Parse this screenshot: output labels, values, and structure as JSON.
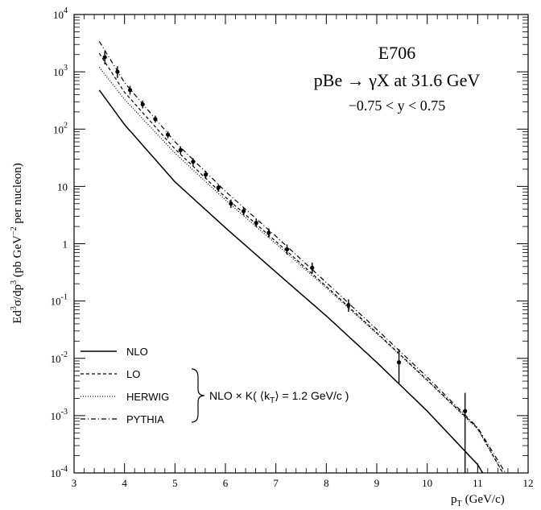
{
  "chart_data": {
    "type": "scatter",
    "title": "E706",
    "subtitle": "pBe → γX at 31.6 GeV",
    "cut": "−0.75 < y < 0.75",
    "xlabel": "p_T (GeV/c)",
    "xlabel_main": "p",
    "xlabel_sub": "T",
    "xlabel_unit": "(GeV/c)",
    "ylabel": "Ed³σ/dp³ (pb GeV⁻² per nucleon)",
    "ylabel_parts": [
      "Ed",
      "3",
      "σ/dp",
      "3",
      " (pb GeV",
      "−2",
      " per nucleon)"
    ],
    "xlim": [
      3,
      12
    ],
    "ylim": [
      0.0001,
      10000
    ],
    "yscale": "log",
    "x_ticks": [
      3,
      4,
      5,
      6,
      7,
      8,
      9,
      10,
      11,
      12
    ],
    "x_tick_labels": [
      "3",
      "4",
      "5",
      "6",
      "7",
      "8",
      "9",
      "10",
      "11",
      "12"
    ],
    "y_ticks": [
      0.0001,
      0.001,
      0.01,
      0.1,
      1,
      10,
      100,
      1000,
      10000
    ],
    "y_tick_labels": [
      {
        "base": "10",
        "exp": "-4"
      },
      {
        "base": "10",
        "exp": "-3"
      },
      {
        "base": "10",
        "exp": "-2"
      },
      {
        "base": "10",
        "exp": "-1"
      },
      {
        "base": "1",
        "exp": ""
      },
      {
        "base": "10",
        "exp": ""
      },
      {
        "base": "10",
        "exp": "2"
      },
      {
        "base": "10",
        "exp": "3"
      },
      {
        "base": "10",
        "exp": "4"
      }
    ],
    "data_points": {
      "x": [
        3.61,
        3.86,
        4.11,
        4.36,
        4.61,
        4.86,
        5.11,
        5.36,
        5.61,
        5.86,
        6.11,
        6.36,
        6.61,
        6.86,
        7.22,
        7.72,
        8.44,
        9.44,
        10.75
      ],
      "y": [
        1800,
        1000,
        480,
        270,
        150,
        80,
        43,
        27,
        16,
        9.5,
        5.0,
        3.7,
        2.3,
        1.55,
        0.8,
        0.38,
        0.085,
        0.0085,
        0.0012
      ],
      "err_low": [
        1350,
        780,
        400,
        230,
        130,
        69,
        37,
        23,
        13.7,
        8.1,
        4.2,
        3.1,
        1.95,
        1.28,
        0.65,
        0.3,
        0.065,
        0.0035,
        0.0001
      ],
      "err_high": [
        2300,
        1250,
        570,
        315,
        172,
        92,
        50,
        31,
        18.6,
        11,
        5.9,
        4.3,
        2.7,
        1.85,
        0.97,
        0.47,
        0.107,
        0.0145,
        0.0025
      ]
    },
    "series": [
      {
        "name": "NLO",
        "style": "solid",
        "x": [
          3.5,
          4,
          5,
          6,
          7,
          8,
          9,
          10,
          11,
          11.1
        ],
        "y": [
          480,
          120,
          12,
          1.9,
          0.32,
          0.055,
          0.0085,
          0.0012,
          0.00014,
          0.0001
        ]
      },
      {
        "name": "LO",
        "style": "dashed",
        "x": [
          3.5,
          4,
          5,
          6,
          7,
          8,
          9,
          10,
          11,
          11.5
        ],
        "y": [
          2100,
          440,
          45,
          6.5,
          1.1,
          0.18,
          0.028,
          0.0042,
          0.0006,
          0.0001
        ]
      },
      {
        "name": "HERWIG",
        "style": "dotted",
        "x": [
          3.5,
          4,
          5,
          6,
          7,
          8,
          9,
          10,
          11,
          11.5
        ],
        "y": [
          1200,
          330,
          38,
          5.8,
          1.0,
          0.17,
          0.027,
          0.0041,
          0.00058,
          0.0001
        ]
      },
      {
        "name": "PYTHIA",
        "style": "dashdot",
        "x": [
          3.5,
          4,
          5,
          6,
          7,
          8,
          9,
          10,
          11,
          11.55
        ],
        "y": [
          3400,
          650,
          60,
          8.2,
          1.35,
          0.21,
          0.032,
          0.0047,
          0.00062,
          0.0001
        ]
      }
    ],
    "legend_position": "bottom-left",
    "brace_label": "NLO × K( ⟨k_T⟩ = 1.2 GeV/c )",
    "brace_label_parts": [
      "NLO × K( ⟨k",
      "T",
      "⟩ = 1.2 GeV/c )"
    ],
    "grid": false
  }
}
